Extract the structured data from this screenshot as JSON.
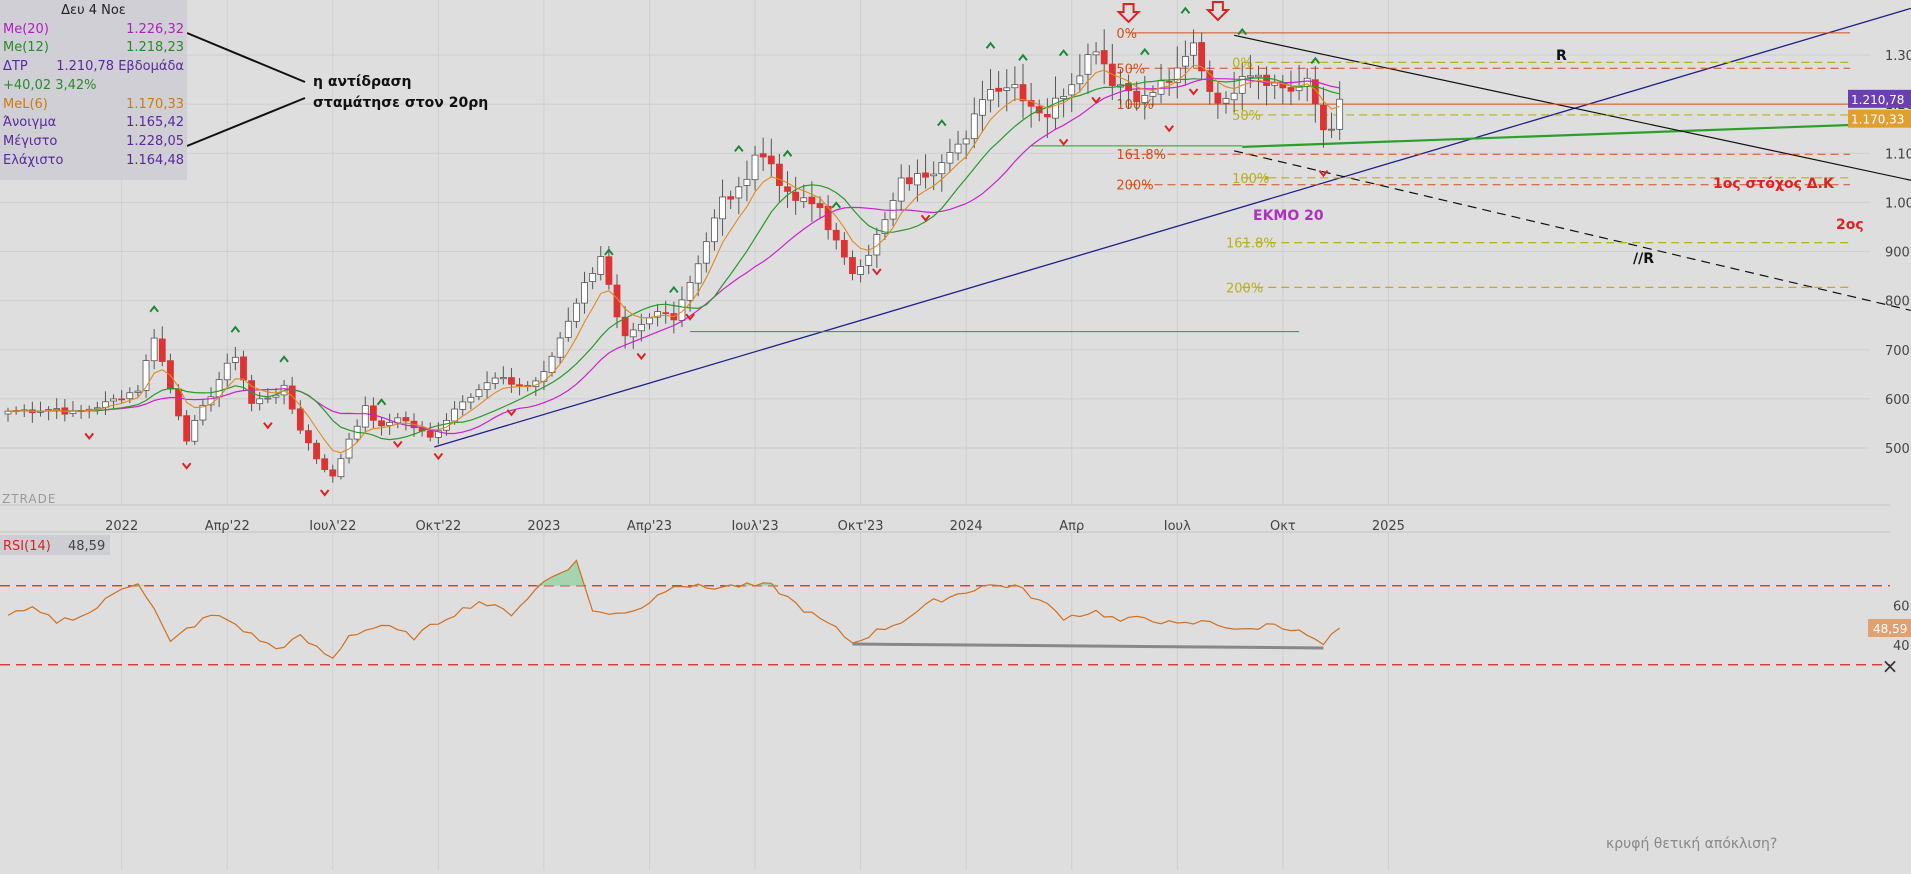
{
  "info_panel": {
    "date": "Δευ 4 Νοε",
    "rows": [
      {
        "label": "Me(20)",
        "value": "1.226,32",
        "color": "#b020c0"
      },
      {
        "label": "Me(12)",
        "value": "1.218,23",
        "color": "#2a8a2a"
      },
      {
        "label": "ΔΤΡ",
        "value": "1.210,78 Εβδομάδα",
        "color": "#5a2a9a"
      },
      {
        "label": "+40,02 3,42%",
        "value": "",
        "color": "#2a8a2a"
      },
      {
        "label": "MeL(6)",
        "value": "1.170,33",
        "color": "#d07a10"
      },
      {
        "label": "Άνοιγμα",
        "value": "1.165,42",
        "color": "#5a2a9a"
      },
      {
        "label": "Μέγιστο",
        "value": "1.228,05",
        "color": "#5a2a9a"
      },
      {
        "label": "Ελάχιστο",
        "value": "1.164,48",
        "color": "#5a2a9a"
      }
    ]
  },
  "annotations": {
    "reaction_line1": "η αντίδραση",
    "reaction_line2": "σταμάτησε στον 20ρη",
    "ekmo": "ΕΚΜΟ 20",
    "target1": "1ος στόχος Δ.Κ",
    "target2": "2ος",
    "r_label": "R",
    "r2_label": "//R",
    "hidden_div": "κρυφή θετική απόκλιση?",
    "watermark": "ZTRADE"
  },
  "fib": {
    "left": [
      {
        "label": "0%"
      },
      {
        "label": "50%"
      },
      {
        "label": "100%"
      },
      {
        "label": "161.8%"
      },
      {
        "label": "200%"
      }
    ],
    "right_upper": [
      {
        "label": "0%"
      },
      {
        "label": "50%"
      },
      {
        "label": "100%"
      }
    ],
    "right_lower": [
      {
        "label": "161.8%"
      },
      {
        "label": "200%"
      }
    ]
  },
  "price_tags": {
    "last": "1.210,78",
    "mel": "1.170,33"
  },
  "rsi_tag": "48,59",
  "rsi_header": {
    "label": "RSI(14)",
    "value": "48,59"
  },
  "colors": {
    "up": "#ffffff",
    "down": "#dd3333",
    "ma20": "#cc22cc",
    "ma12": "#2a9a2a",
    "mel6": "#e08a20",
    "trend": "#20208a",
    "rsi": "#d07020",
    "fib": "#d05018",
    "fib2": "#b8b020",
    "target": "#dd2222"
  },
  "chart_data": {
    "type": "candlestick",
    "interval": "weekly",
    "x_ticks": [
      "2022",
      "Απρ'22",
      "Ιουλ'22",
      "Οκτ'22",
      "2023",
      "Απρ'23",
      "Ιουλ'23",
      "Οκτ'23",
      "2024",
      "Απρ",
      "Ιουλ",
      "Οκτ",
      "2025"
    ],
    "y_ticks": [
      500,
      600,
      700,
      800,
      900,
      1000,
      1100,
      1200,
      1300
    ],
    "y_tick_labels": [
      "500",
      "600",
      "700",
      "800",
      "900",
      "1.000",
      "1.100",
      "1.200",
      "1.300"
    ],
    "ylim": [
      410,
      1390
    ],
    "close_anchors": [
      [
        0,
        575
      ],
      [
        6,
        580
      ],
      [
        8,
        570
      ],
      [
        12,
        590
      ],
      [
        16,
        620
      ],
      [
        18,
        730
      ],
      [
        20,
        620
      ],
      [
        22,
        520
      ],
      [
        26,
        640
      ],
      [
        28,
        690
      ],
      [
        30,
        590
      ],
      [
        34,
        620
      ],
      [
        36,
        540
      ],
      [
        38,
        480
      ],
      [
        40,
        440
      ],
      [
        42,
        520
      ],
      [
        44,
        580
      ],
      [
        46,
        540
      ],
      [
        48,
        565
      ],
      [
        52,
        520
      ],
      [
        56,
        600
      ],
      [
        60,
        640
      ],
      [
        64,
        625
      ],
      [
        66,
        650
      ],
      [
        70,
        800
      ],
      [
        73,
        895
      ],
      [
        75,
        760
      ],
      [
        76,
        720
      ],
      [
        78,
        745
      ],
      [
        80,
        775
      ],
      [
        82,
        770
      ],
      [
        84,
        840
      ],
      [
        88,
        1005
      ],
      [
        90,
        1020
      ],
      [
        92,
        1100
      ],
      [
        94,
        1080
      ],
      [
        96,
        1010
      ],
      [
        100,
        990
      ],
      [
        103,
        880
      ],
      [
        104,
        860
      ],
      [
        106,
        900
      ],
      [
        108,
        960
      ],
      [
        110,
        1040
      ],
      [
        112,
        1050
      ],
      [
        114,
        1070
      ],
      [
        116,
        1115
      ],
      [
        118,
        1120
      ],
      [
        120,
        1220
      ],
      [
        122,
        1240
      ],
      [
        124,
        1240
      ],
      [
        126,
        1200
      ],
      [
        128,
        1180
      ],
      [
        131,
        1250
      ],
      [
        134,
        1320
      ],
      [
        136,
        1250
      ],
      [
        138,
        1230
      ],
      [
        140,
        1210
      ],
      [
        142,
        1240
      ],
      [
        144,
        1260
      ],
      [
        146,
        1320
      ],
      [
        148,
        1230
      ],
      [
        150,
        1200
      ],
      [
        152,
        1270
      ],
      [
        154,
        1265
      ],
      [
        156,
        1240
      ],
      [
        158,
        1230
      ],
      [
        160,
        1240
      ],
      [
        161,
        1200
      ],
      [
        162,
        1150
      ],
      [
        163,
        1160
      ],
      [
        164,
        1210
      ]
    ],
    "rsi": {
      "period": 14,
      "ylim": [
        30,
        80
      ],
      "y_ticks": [
        40,
        60
      ],
      "overbought": 70,
      "oversold": 30,
      "anchors": [
        [
          0,
          55
        ],
        [
          3,
          58
        ],
        [
          6,
          52
        ],
        [
          10,
          56
        ],
        [
          14,
          69
        ],
        [
          16,
          72
        ],
        [
          18,
          58
        ],
        [
          20,
          41
        ],
        [
          22,
          48
        ],
        [
          25,
          55
        ],
        [
          27,
          53
        ],
        [
          30,
          45
        ],
        [
          33,
          38
        ],
        [
          36,
          44
        ],
        [
          40,
          33
        ],
        [
          42,
          45
        ],
        [
          46,
          50
        ],
        [
          50,
          44
        ],
        [
          54,
          54
        ],
        [
          58,
          62
        ],
        [
          62,
          56
        ],
        [
          66,
          72
        ],
        [
          70,
          82
        ],
        [
          72,
          58
        ],
        [
          74,
          55
        ],
        [
          78,
          59
        ],
        [
          82,
          71
        ],
        [
          86,
          69
        ],
        [
          90,
          70
        ],
        [
          94,
          70
        ],
        [
          98,
          58
        ],
        [
          102,
          48
        ],
        [
          104,
          41
        ],
        [
          107,
          47
        ],
        [
          110,
          52
        ],
        [
          114,
          62
        ],
        [
          118,
          67
        ],
        [
          120,
          70
        ],
        [
          124,
          70
        ],
        [
          128,
          60
        ],
        [
          130,
          54
        ],
        [
          134,
          57
        ],
        [
          137,
          52
        ],
        [
          140,
          54
        ],
        [
          144,
          50
        ],
        [
          148,
          52
        ],
        [
          152,
          47
        ],
        [
          156,
          51
        ],
        [
          160,
          45
        ],
        [
          161,
          42
        ],
        [
          162,
          40
        ],
        [
          164,
          48.59
        ]
      ]
    }
  }
}
